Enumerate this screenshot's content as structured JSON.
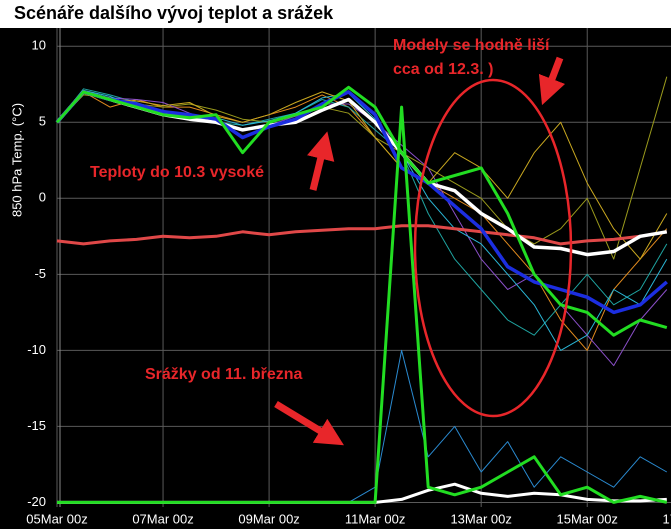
{
  "chart_data": {
    "type": "line",
    "title": "Scénáře dalšího vývoj teplot a srážek",
    "y_label": "850 hPa Temp. (°C)",
    "x": [
      0,
      0.5,
      1,
      1.5,
      2,
      2.5,
      3,
      3.5,
      4,
      4.5,
      5,
      5.5,
      6,
      6.5,
      7,
      7.5,
      8,
      8.5,
      9,
      9.5,
      10,
      10.5,
      11,
      11.5
    ],
    "xlim": [
      0,
      11.58
    ],
    "xticks": [
      {
        "value": 0,
        "label": "05Mar 00z"
      },
      {
        "value": 2,
        "label": "07Mar 00z"
      },
      {
        "value": 4,
        "label": "09Mar 00z"
      },
      {
        "value": 6,
        "label": "11Mar 00z"
      },
      {
        "value": 8,
        "label": "13Mar 00z"
      },
      {
        "value": 10,
        "label": "15Mar 00z"
      },
      {
        "value": 12,
        "label": "17Mar 00z"
      }
    ],
    "ylim": [
      -20.3,
      11.2
    ],
    "yticks": [
      10,
      5,
      0,
      -5,
      -10,
      -15,
      -20
    ],
    "grid": true,
    "series": [
      {
        "color": "#e08a1e",
        "width": 1,
        "values": [
          5,
          7,
          6,
          6.5,
          6,
          6,
          5.5,
          5,
          5.5,
          6,
          6.8,
          6,
          4,
          2,
          1,
          0,
          -1,
          -3,
          -5,
          -8,
          -10,
          -6,
          -4,
          -2
        ]
      },
      {
        "color": "#1fa3a0",
        "width": 1,
        "values": [
          5,
          7.2,
          6.8,
          6.3,
          5.7,
          5.5,
          5,
          4.8,
          5.2,
          5.6,
          6.5,
          6,
          4.5,
          3,
          -1,
          -4,
          -6,
          -8,
          -9,
          -7,
          -5,
          -7,
          -6,
          -3
        ]
      },
      {
        "color": "#9a9a1c",
        "width": 1,
        "values": [
          5,
          6.8,
          6.6,
          6.2,
          6,
          6.2,
          5.8,
          5.2,
          5,
          5.4,
          6,
          5.6,
          4,
          3,
          2,
          1,
          0,
          -2,
          -3,
          -2,
          0,
          -4,
          2,
          8
        ]
      },
      {
        "color": "#8a4fc8",
        "width": 1,
        "values": [
          5,
          7,
          6.6,
          6.5,
          6.3,
          5.6,
          5,
          4.5,
          4.8,
          5.4,
          6.2,
          6.2,
          5,
          3.5,
          2,
          -1,
          -4,
          -6,
          -5,
          -7,
          -9,
          -11,
          -8,
          -6
        ]
      },
      {
        "color": "#2ab6d6",
        "width": 1,
        "values": [
          5,
          7.1,
          6.7,
          6,
          5.6,
          5.2,
          5.3,
          4.8,
          5.1,
          5.6,
          6.6,
          6.9,
          5.2,
          3,
          0,
          -2,
          -3,
          -5,
          -7,
          -10,
          -9,
          -6,
          -7,
          -4
        ]
      },
      {
        "color": "#c9a820",
        "width": 1,
        "values": [
          5,
          6.9,
          6.5,
          6.4,
          6.1,
          6.3,
          5.4,
          5,
          5.5,
          6.3,
          7,
          6.4,
          4,
          2,
          1,
          3,
          2,
          0,
          3,
          5,
          1,
          -2,
          -4,
          -1
        ]
      },
      {
        "color": "#2a8ad0",
        "width": 1,
        "values": [
          -20,
          -20,
          -20,
          -20,
          -20,
          -20,
          -20,
          -20,
          -20,
          -20,
          -20,
          -20,
          -19,
          -10,
          -17,
          -15,
          -18,
          -16,
          -19,
          -17,
          -18,
          -19,
          -17,
          -18
        ]
      },
      {
        "color": "#e04848",
        "width": 3,
        "values": [
          -2.8,
          -3,
          -2.8,
          -2.7,
          -2.5,
          -2.6,
          -2.5,
          -2.2,
          -2.4,
          -2.2,
          -2.1,
          -2,
          -2,
          -1.8,
          -1.8,
          -2,
          -2.2,
          -2.4,
          -2.6,
          -3,
          -2.8,
          -2.7,
          -2.5,
          -2.2
        ]
      },
      {
        "color": "#ffffff",
        "width": 3.5,
        "values": [
          5,
          7,
          6.5,
          6,
          5.5,
          5.2,
          5,
          4.5,
          4.8,
          5,
          5.8,
          6.5,
          5,
          3,
          1,
          0.5,
          -1,
          -2,
          -3.2,
          -3.3,
          -3.7,
          -3.5,
          -2.5,
          -2.2
        ]
      },
      {
        "color": "#1c2ee0",
        "width": 3.5,
        "values": [
          5,
          7,
          6.5,
          6.2,
          5.7,
          5.5,
          5.2,
          4,
          4.7,
          5.2,
          6.2,
          7,
          5.5,
          2,
          1,
          -0.5,
          -2,
          -4.5,
          -5.5,
          -6,
          -6.5,
          -7.5,
          -7,
          -5.5
        ]
      },
      {
        "color": "#22dd22",
        "width": 3,
        "values": [
          5,
          7,
          6.5,
          6,
          5.5,
          5.3,
          5.5,
          3,
          5,
          5.5,
          6,
          7.3,
          6,
          3,
          1,
          1.5,
          2,
          -1,
          -5,
          -7,
          -7.5,
          -9,
          -8,
          -8.5
        ]
      },
      {
        "color": "#ffffff",
        "width": 3,
        "values": [
          -20,
          -20,
          -20,
          -20,
          -20,
          -20,
          -20,
          -20,
          -20,
          -20,
          -20,
          -20,
          -20,
          -19.8,
          -19.2,
          -18.8,
          -19.4,
          -19.6,
          -19.4,
          -19.5,
          -19.8,
          -19.9,
          -19.9,
          -19.8
        ]
      },
      {
        "color": "#22dd22",
        "width": 3,
        "values": [
          -20,
          -20,
          -20,
          -20,
          -20,
          -20,
          -20,
          -20,
          -20,
          -20,
          -20,
          -20,
          -20,
          6,
          -19,
          -19.5,
          -19,
          -18,
          -17,
          -19.5,
          -19,
          -20,
          -19.6,
          -20
        ]
      }
    ],
    "annotations": {
      "models": [
        "Modely se hodně liší",
        "cca od 12.3. )"
      ],
      "temps": "Teploty do 10.3 vysoké",
      "precip": "Srážky od 11. března"
    }
  }
}
